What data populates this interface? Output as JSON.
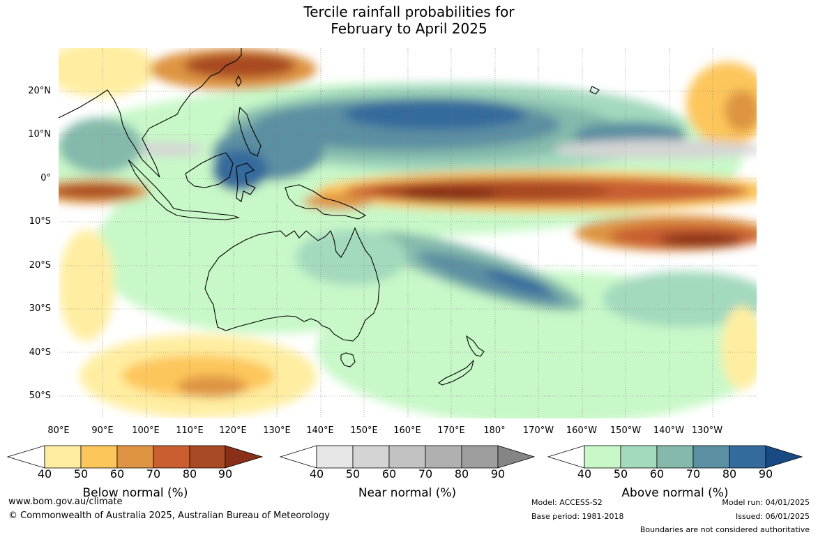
{
  "title_line1": "Tercile rainfall probabilities for",
  "title_line2": "February to April 2025",
  "lat_labels": [
    "20°N",
    "10°N",
    "0°",
    "10°S",
    "20°S",
    "30°S",
    "40°S",
    "50°S"
  ],
  "lon_labels": [
    "80°E",
    "90°E",
    "100°E",
    "110°E",
    "120°E",
    "130°E",
    "140°E",
    "150°E",
    "160°E",
    "170°E",
    "180°",
    "170°W",
    "160°W",
    "150°W",
    "140°W",
    "130°W"
  ],
  "colorbars": [
    {
      "label": "Below normal (%)",
      "ticks": [
        "40",
        "50",
        "60",
        "70",
        "80",
        "90"
      ],
      "colors": [
        "#ffeea1",
        "#fdc65b",
        "#de9443",
        "#c95f31",
        "#a84a23",
        "#8a3019"
      ]
    },
    {
      "label": "Near normal (%)",
      "ticks": [
        "40",
        "50",
        "60",
        "70",
        "80",
        "90"
      ],
      "colors": [
        "#e6e6e6",
        "#d4d4d4",
        "#c2c2c2",
        "#b0b0b0",
        "#9e9e9e",
        "#858585"
      ]
    },
    {
      "label": "Above normal (%)",
      "ticks": [
        "40",
        "50",
        "60",
        "70",
        "80",
        "90"
      ],
      "colors": [
        "#c8f8c8",
        "#a3d9bd",
        "#84b9ac",
        "#5b8fa2",
        "#356a9c",
        "#1a4a84"
      ]
    }
  ],
  "footer": {
    "url": "www.bom.gov.au/climate",
    "copyright": "© Commonwealth of Australia 2025, Australian Bureau of Meteorology",
    "model": "Model: ACCESS-S2",
    "base_period": "Base period: 1981-2018",
    "model_run": "Model run: 04/01/2025",
    "issued": "Issued: 06/01/2025",
    "disclaimer": "Boundaries are not considered authoritative"
  }
}
